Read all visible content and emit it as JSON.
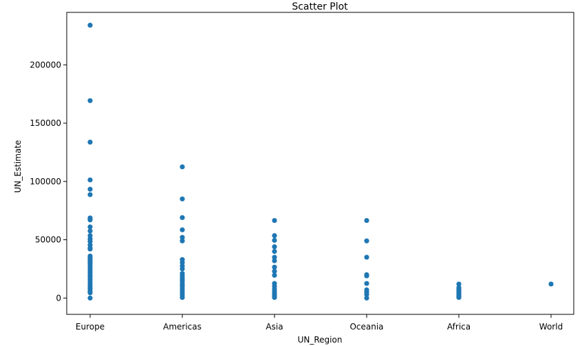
{
  "chart_data": {
    "type": "scatter",
    "title": "Scatter Plot",
    "xlabel": "UN_Region",
    "ylabel": "UN_Estimate",
    "categories": [
      "Europe",
      "Americas",
      "Asia",
      "Oceania",
      "Africa",
      "World"
    ],
    "ylim": [
      -14000,
      245000
    ],
    "yticks": [
      0,
      50000,
      100000,
      150000,
      200000
    ],
    "ytick_labels": [
      "0",
      "50000",
      "100000",
      "150000",
      "200000"
    ],
    "grid": false,
    "marker_color": "#1f77b4",
    "points": {
      "Europe": [
        234000,
        169300,
        133700,
        101300,
        93300,
        88700,
        68700,
        67000,
        61000,
        57500,
        53500,
        50700,
        48500,
        45500,
        43000,
        42000,
        36000,
        34500,
        33000,
        31500,
        30000,
        28000,
        26000,
        24000,
        22000,
        20000,
        18000,
        16000,
        14000,
        12000,
        10000,
        8000,
        6000,
        4500,
        0
      ],
      "Americas": [
        112500,
        85000,
        69000,
        58500,
        52000,
        49000,
        33000,
        30500,
        27500,
        25000,
        21000,
        19000,
        17000,
        15500,
        14000,
        12000,
        10500,
        8500,
        6500,
        4500,
        2500,
        500
      ],
      "Asia": [
        66500,
        53500,
        49500,
        44000,
        40000,
        35000,
        32000,
        26500,
        23000,
        19500,
        12500,
        10000,
        7500,
        5500,
        3500,
        2000,
        500
      ],
      "Oceania": [
        66500,
        49000,
        35000,
        20000,
        19000,
        12500,
        7000,
        5000,
        3000,
        0
      ],
      "Africa": [
        12000,
        9000,
        8000,
        6500,
        5000,
        4000,
        3000,
        2000,
        1000,
        500
      ],
      "World": [
        12000
      ]
    }
  }
}
